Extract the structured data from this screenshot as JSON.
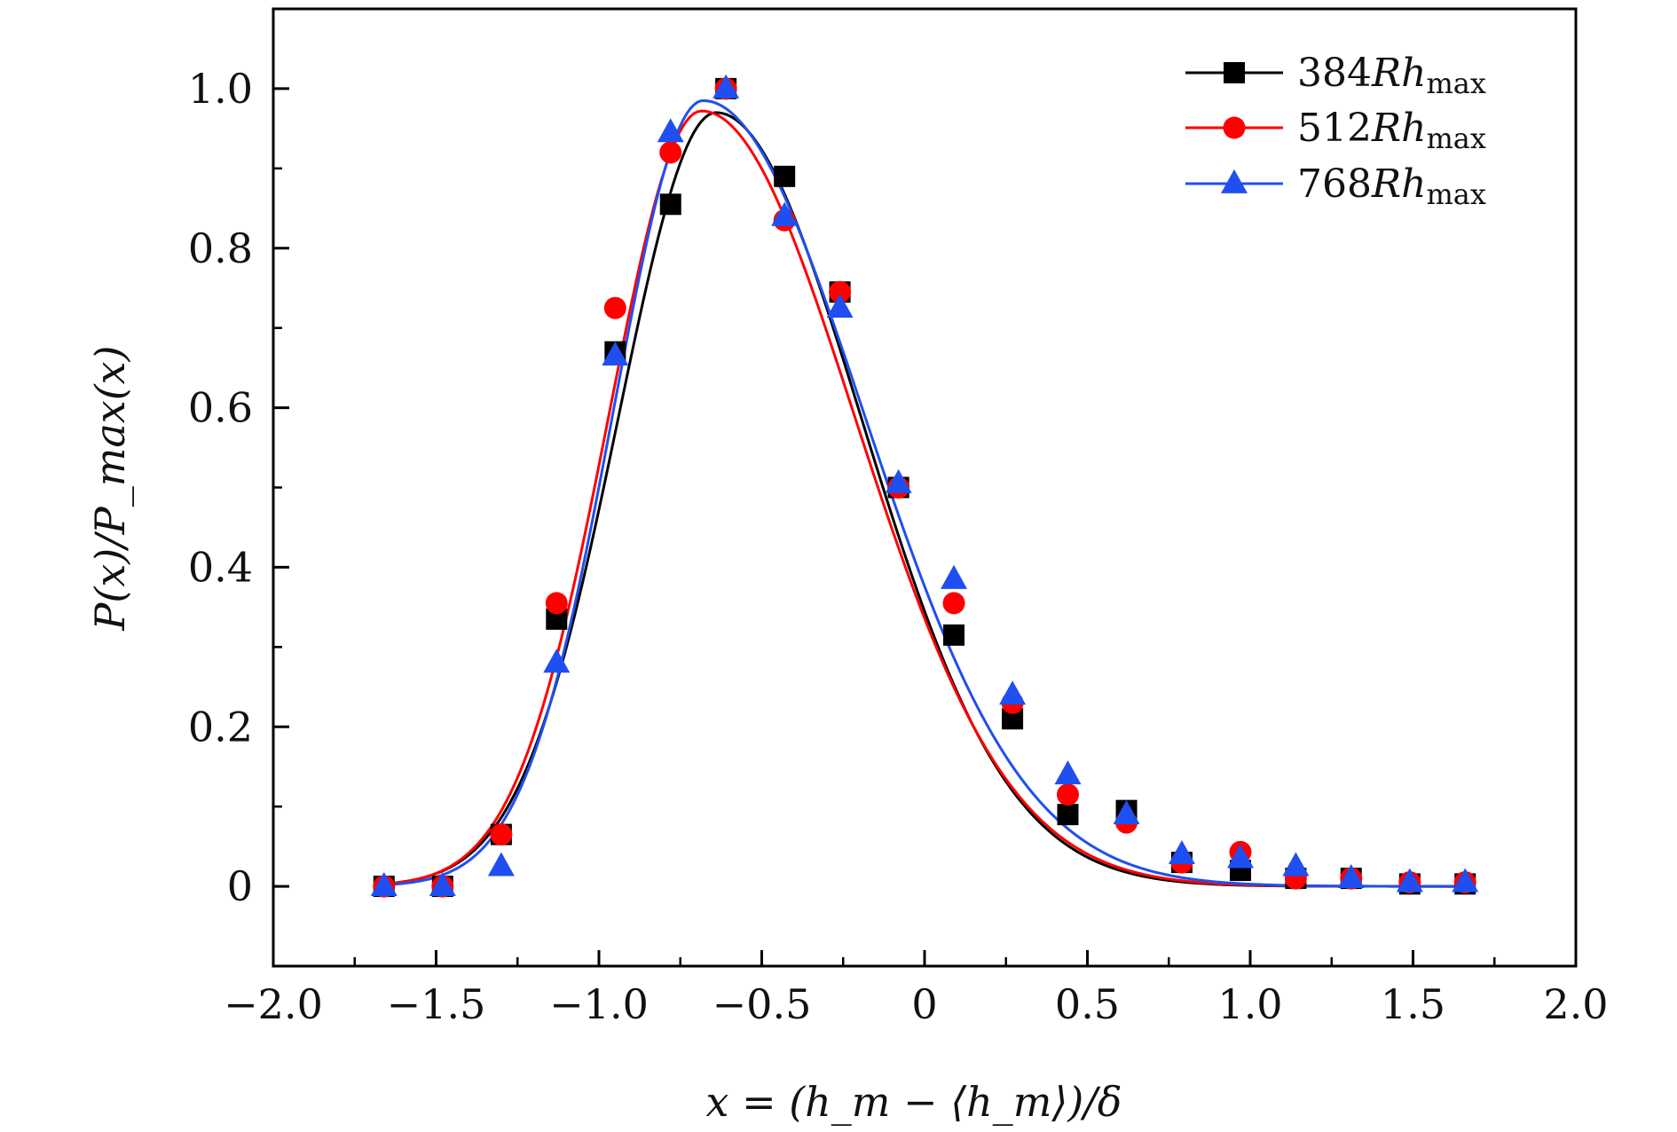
{
  "chart_data": {
    "type": "scatter",
    "title": "",
    "xlabel": "x = (h_m − ⟨h_m⟩)/δ",
    "ylabel": "P(x)/P_max(x)",
    "xlim": [
      -2.0,
      2.0
    ],
    "ylim": [
      -0.1,
      1.1
    ],
    "xticks": [
      -2.0,
      -1.5,
      -1.0,
      -0.5,
      0,
      0.5,
      1.0,
      1.5,
      2.0
    ],
    "xtick_labels": [
      "−2.0",
      "−1.5",
      "−1.0",
      "−0.5",
      "0",
      "0.5",
      "1.0",
      "1.5",
      "2.0"
    ],
    "yticks": [
      0,
      0.2,
      0.4,
      0.6,
      0.8,
      1.0
    ],
    "ytick_labels": [
      "0",
      "0.2",
      "0.4",
      "0.6",
      "0.8",
      "1.0"
    ],
    "legend_position": "top-right",
    "series": [
      {
        "name": "384Rh_max",
        "legend_main": "384",
        "legend_italic": "Rh",
        "legend_sub": "max",
        "color": "#000000",
        "marker": "square",
        "x": [
          -1.66,
          -1.48,
          -1.3,
          -1.13,
          -0.95,
          -0.78,
          -0.61,
          -0.43,
          -0.26,
          -0.08,
          0.09,
          0.27,
          0.44,
          0.62,
          0.79,
          0.97,
          1.14,
          1.31,
          1.49,
          1.66
        ],
        "y": [
          0.0,
          0.0,
          0.065,
          0.335,
          0.67,
          0.855,
          1.0,
          0.89,
          0.745,
          0.5,
          0.315,
          0.21,
          0.09,
          0.095,
          0.03,
          0.02,
          0.01,
          0.01,
          0.003,
          0.003
        ],
        "fit": {
          "peak": 0.97,
          "mode": -0.64,
          "sigma_left": 0.3,
          "sigma_right": 0.445,
          "power": 2.0
        }
      },
      {
        "name": "512Rh_max",
        "legend_main": "512",
        "legend_italic": "Rh",
        "legend_sub": "max",
        "color": "#ff0000",
        "marker": "circle",
        "x": [
          -1.66,
          -1.48,
          -1.3,
          -1.13,
          -0.95,
          -0.78,
          -0.61,
          -0.43,
          -0.26,
          -0.08,
          0.09,
          0.27,
          0.44,
          0.62,
          0.79,
          0.97,
          1.14,
          1.31,
          1.49,
          1.66
        ],
        "y": [
          0.0,
          0.0,
          0.065,
          0.355,
          0.725,
          0.92,
          1.0,
          0.835,
          0.745,
          0.5,
          0.355,
          0.23,
          0.115,
          0.08,
          0.03,
          0.043,
          0.01,
          0.01,
          0.005,
          0.005
        ],
        "fit": {
          "peak": 0.972,
          "mode": -0.685,
          "sigma_left": 0.285,
          "sigma_right": 0.47,
          "power": 2.0
        }
      },
      {
        "name": "768Rh_max",
        "legend_main": "768",
        "legend_italic": "Rh",
        "legend_sub": "max",
        "color": "#1f4ff0",
        "marker": "triangle",
        "x": [
          -1.66,
          -1.48,
          -1.3,
          -1.13,
          -0.95,
          -0.78,
          -0.61,
          -0.43,
          -0.26,
          -0.08,
          0.09,
          0.27,
          0.44,
          0.62,
          0.79,
          0.97,
          1.14,
          1.31,
          1.49,
          1.66
        ],
        "y": [
          0.0,
          0.0,
          0.025,
          0.28,
          0.665,
          0.945,
          1.0,
          0.84,
          0.725,
          0.505,
          0.385,
          0.24,
          0.14,
          0.09,
          0.04,
          0.035,
          0.025,
          0.01,
          0.005,
          0.005
        ],
        "fit": {
          "peak": 0.985,
          "mode": -0.68,
          "sigma_left": 0.275,
          "sigma_right": 0.49,
          "power": 2.0
        }
      }
    ]
  }
}
